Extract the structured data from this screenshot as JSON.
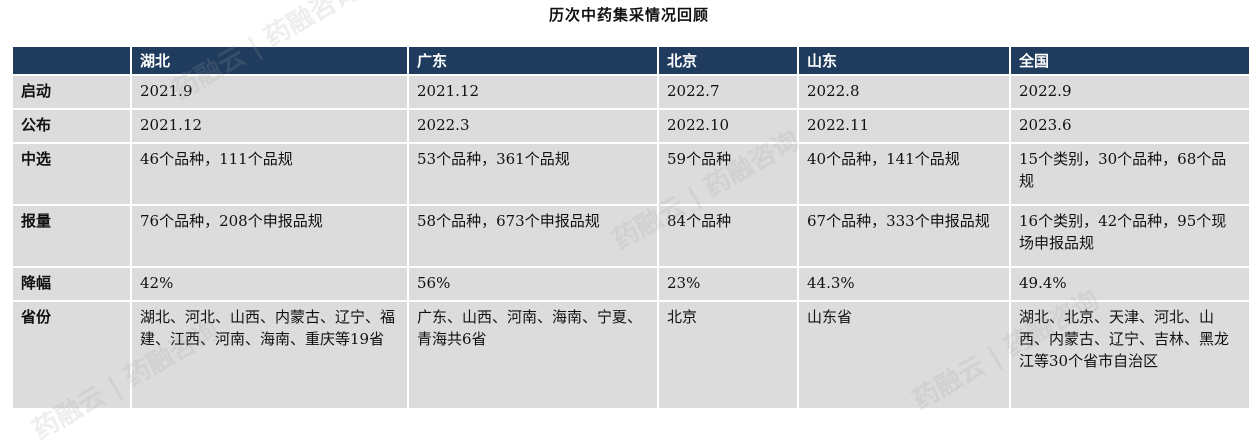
{
  "title": "历次中药集采情况回顾",
  "watermark": "药融云 | 药融咨询",
  "columns": [
    "",
    "湖北",
    "广东",
    "北京",
    "山东",
    "全国"
  ],
  "rows": [
    {
      "label": "启动",
      "cells": [
        "2021.9",
        "2021.12",
        "2022.7",
        "2022.8",
        "2022.9"
      ]
    },
    {
      "label": "公布",
      "cells": [
        "2021.12",
        "2022.3",
        "2022.10",
        "2022.11",
        "2023.6"
      ]
    },
    {
      "label": "中选",
      "cells": [
        "46个品种，111个品规",
        "53个品种，361个品规",
        "59个品种",
        "40个品种，141个品规",
        "15个类别，30个品种，68个品规"
      ]
    },
    {
      "label": "报量",
      "cells": [
        "76个品种，208个申报品规",
        "58个品种，673个申报品规",
        "84个品种",
        "67个品种，333个申报品规",
        "16个类别，42个品种，95个现场申报品规"
      ]
    },
    {
      "label": "降幅",
      "cells": [
        "42%",
        "56%",
        "23%",
        "44.3%",
        "49.4%"
      ]
    },
    {
      "label": "省份",
      "cells": [
        "湖北、河北、山西、内蒙古、辽宁、福建、江西、河南、海南、重庆等19省",
        "广东、山西、河南、海南、宁夏、青海共6省",
        "北京",
        "山东省",
        "湖北、北京、天津、河北、山西、内蒙古、辽宁、吉林、黑龙江等30个省市自治区"
      ]
    }
  ]
}
